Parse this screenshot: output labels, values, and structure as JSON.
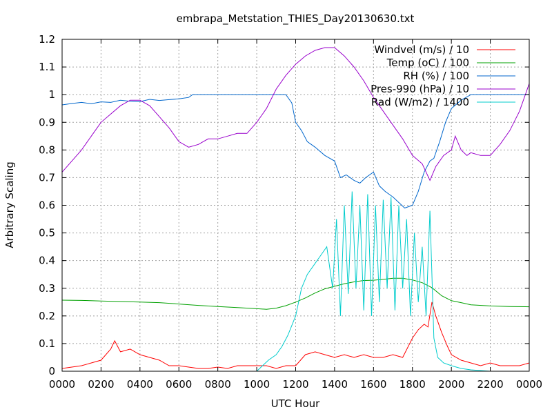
{
  "chart_data": {
    "type": "line",
    "title": "embrapa_Metstation_THIES_Day20130630.txt",
    "xlabel": "UTC Hour",
    "ylabel": "Arbitrary Scaling",
    "xlim": [
      0,
      24
    ],
    "ylim": [
      0,
      1.2
    ],
    "xticks": [
      0,
      2,
      4,
      6,
      8,
      10,
      12,
      14,
      16,
      18,
      20,
      22,
      24
    ],
    "xtick_labels": [
      "0000",
      "0200",
      "0400",
      "0600",
      "0800",
      "1000",
      "1200",
      "1400",
      "1600",
      "1800",
      "2000",
      "2200",
      "0000"
    ],
    "yticks": [
      0,
      0.1,
      0.2,
      0.3,
      0.4,
      0.5,
      0.6,
      0.7,
      0.8,
      0.9,
      1,
      1.1,
      1.2
    ],
    "ytick_labels": [
      "0",
      "0.1",
      "0.2",
      "0.3",
      "0.4",
      "0.5",
      "0.6",
      "0.7",
      "0.8",
      "0.9",
      "1",
      "1.1",
      "1.2"
    ],
    "grid": true,
    "legend_position": "top-right",
    "series": [
      {
        "name": "Windvel (m/s) / 10",
        "color": "#ff0000",
        "x": [
          0,
          0.5,
          1,
          1.5,
          2,
          2.5,
          2.7,
          3,
          3.5,
          4,
          4.5,
          5,
          5.5,
          6,
          6.5,
          7,
          7.5,
          8,
          8.5,
          9,
          9.5,
          10,
          10.5,
          11,
          11.5,
          12,
          12.5,
          13,
          13.5,
          14,
          14.5,
          15,
          15.5,
          16,
          16.5,
          17,
          17.5,
          18,
          18.3,
          18.6,
          18.8,
          19,
          19.2,
          19.5,
          19.8,
          20,
          20.5,
          21,
          21.5,
          22,
          22.5,
          23,
          23.5,
          24
        ],
        "y": [
          0.01,
          0.015,
          0.02,
          0.03,
          0.04,
          0.08,
          0.11,
          0.07,
          0.08,
          0.06,
          0.05,
          0.04,
          0.02,
          0.02,
          0.015,
          0.01,
          0.01,
          0.015,
          0.01,
          0.02,
          0.02,
          0.02,
          0.02,
          0.01,
          0.02,
          0.02,
          0.06,
          0.07,
          0.06,
          0.05,
          0.06,
          0.05,
          0.06,
          0.05,
          0.05,
          0.06,
          0.05,
          0.12,
          0.15,
          0.17,
          0.16,
          0.25,
          0.2,
          0.14,
          0.09,
          0.06,
          0.04,
          0.03,
          0.02,
          0.03,
          0.02,
          0.02,
          0.02,
          0.03
        ]
      },
      {
        "name": "Temp (oC) / 100",
        "color": "#00a000",
        "x": [
          0,
          1,
          2,
          3,
          4,
          5,
          6,
          7,
          8,
          9,
          10,
          10.5,
          11,
          11.5,
          12,
          12.5,
          13,
          13.5,
          14,
          14.5,
          15,
          15.5,
          16,
          16.5,
          17,
          17.5,
          18,
          18.5,
          19,
          19.5,
          20,
          20.5,
          21,
          22,
          23,
          24
        ],
        "y": [
          0.257,
          0.256,
          0.254,
          0.252,
          0.25,
          0.248,
          0.243,
          0.238,
          0.234,
          0.23,
          0.226,
          0.224,
          0.228,
          0.237,
          0.25,
          0.265,
          0.283,
          0.298,
          0.307,
          0.316,
          0.323,
          0.328,
          0.329,
          0.332,
          0.336,
          0.336,
          0.33,
          0.32,
          0.302,
          0.273,
          0.255,
          0.248,
          0.24,
          0.236,
          0.234,
          0.233
        ]
      },
      {
        "name": "RH (%) / 100",
        "color": "#0066cc",
        "x": [
          0,
          0.5,
          1,
          1.5,
          2,
          2.5,
          3,
          3.5,
          4,
          4.5,
          5,
          5.5,
          6,
          6.5,
          6.7,
          7,
          8,
          9,
          10,
          11,
          11.5,
          11.8,
          12,
          12.3,
          12.6,
          13,
          13.5,
          14,
          14.3,
          14.6,
          15,
          15.3,
          15.6,
          16,
          16.3,
          16.6,
          17,
          17.3,
          17.6,
          18,
          18.3,
          18.6,
          18.9,
          19.1,
          19.4,
          19.7,
          20,
          20.5,
          21,
          22,
          23,
          24
        ],
        "y": [
          0.963,
          0.968,
          0.972,
          0.967,
          0.974,
          0.972,
          0.98,
          0.976,
          0.975,
          0.983,
          0.979,
          0.982,
          0.985,
          0.99,
          1,
          1,
          1,
          1,
          1,
          1,
          1,
          0.97,
          0.9,
          0.87,
          0.83,
          0.81,
          0.78,
          0.76,
          0.7,
          0.71,
          0.69,
          0.68,
          0.7,
          0.72,
          0.67,
          0.65,
          0.63,
          0.61,
          0.59,
          0.6,
          0.65,
          0.72,
          0.76,
          0.77,
          0.83,
          0.9,
          0.95,
          0.98,
          1,
          1,
          1,
          1
        ]
      },
      {
        "name": "Pres-990 (hPa) / 10",
        "color": "#9900cc",
        "x": [
          0,
          0.5,
          1,
          1.5,
          2,
          2.5,
          3,
          3.5,
          4,
          4.5,
          5,
          5.5,
          6,
          6.5,
          7,
          7.5,
          8,
          8.5,
          9,
          9.5,
          10,
          10.5,
          11,
          11.5,
          12,
          12.5,
          13,
          13.5,
          14,
          14.5,
          15,
          15.5,
          16,
          16.5,
          17,
          17.5,
          18,
          18.5,
          18.9,
          19.2,
          19.6,
          20,
          20.2,
          20.5,
          20.8,
          21,
          21.5,
          22,
          22.5,
          23,
          23.5,
          24
        ],
        "y": [
          0.72,
          0.76,
          0.8,
          0.85,
          0.9,
          0.93,
          0.96,
          0.98,
          0.98,
          0.96,
          0.92,
          0.88,
          0.83,
          0.81,
          0.82,
          0.84,
          0.84,
          0.85,
          0.86,
          0.86,
          0.9,
          0.95,
          1.02,
          1.07,
          1.11,
          1.14,
          1.16,
          1.17,
          1.17,
          1.14,
          1.1,
          1.05,
          0.99,
          0.94,
          0.89,
          0.84,
          0.78,
          0.75,
          0.69,
          0.74,
          0.78,
          0.8,
          0.85,
          0.8,
          0.78,
          0.79,
          0.78,
          0.78,
          0.82,
          0.87,
          0.94,
          1.04
        ]
      },
      {
        "name": "Rad (W/m2) / 1400",
        "color": "#00cccc",
        "x": [
          0,
          1,
          2,
          3,
          4,
          5,
          6,
          7,
          8,
          9,
          10,
          10.3,
          10.6,
          11,
          11.3,
          11.6,
          12,
          12.3,
          12.6,
          13,
          13.3,
          13.6,
          13.9,
          14.1,
          14.3,
          14.5,
          14.7,
          14.9,
          15.1,
          15.3,
          15.5,
          15.7,
          15.9,
          16.1,
          16.3,
          16.5,
          16.7,
          16.9,
          17.1,
          17.3,
          17.5,
          17.7,
          17.9,
          18.1,
          18.3,
          18.5,
          18.7,
          18.9,
          19.1,
          19.3,
          19.6,
          20,
          20.5,
          21,
          22,
          23,
          24
        ],
        "y": [
          0,
          0,
          0,
          0,
          0,
          0,
          0,
          0,
          0,
          0,
          0,
          0.02,
          0.04,
          0.06,
          0.09,
          0.13,
          0.2,
          0.3,
          0.35,
          0.39,
          0.42,
          0.45,
          0.3,
          0.55,
          0.2,
          0.6,
          0.28,
          0.65,
          0.3,
          0.6,
          0.22,
          0.64,
          0.2,
          0.6,
          0.25,
          0.62,
          0.3,
          0.63,
          0.22,
          0.6,
          0.3,
          0.55,
          0.2,
          0.5,
          0.25,
          0.45,
          0.2,
          0.58,
          0.12,
          0.05,
          0.03,
          0.02,
          0.01,
          0.005,
          0,
          0,
          0
        ]
      }
    ]
  }
}
